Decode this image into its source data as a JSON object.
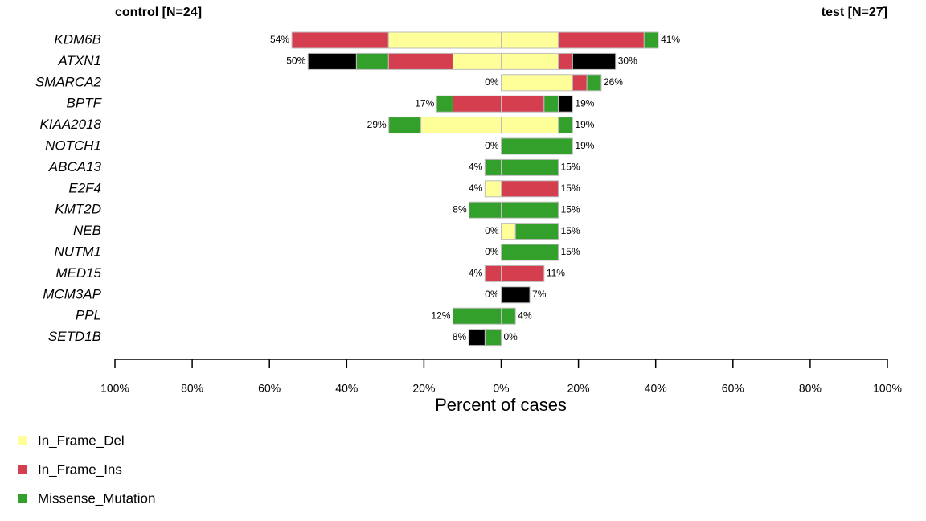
{
  "chart_data": {
    "type": "co-bar",
    "left_title": "control [N=24]",
    "right_title": "test [N=27]",
    "xlabel": "Percent of cases",
    "categories": [
      "KDM6B",
      "ATXN1",
      "SMARCA2",
      "BPTF",
      "KIAA2018",
      "NOTCH1",
      "ABCA13",
      "E2F4",
      "KMT2D",
      "NEB",
      "NUTM1",
      "MED15",
      "MCM3AP",
      "PPL",
      "SETD1B"
    ],
    "left_labels": [
      "54%",
      "50%",
      "0%",
      "17%",
      "29%",
      "0%",
      "4%",
      "4%",
      "8%",
      "0%",
      "0%",
      "4%",
      "0%",
      "12%",
      "8%"
    ],
    "right_labels": [
      "41%",
      "30%",
      "26%",
      "19%",
      "19%",
      "19%",
      "15%",
      "15%",
      "15%",
      "15%",
      "15%",
      "11%",
      "7%",
      "4%",
      "0%"
    ],
    "series": [
      {
        "name": "In_Frame_Del",
        "color": "#FFFF99",
        "left_values": [
          29.2,
          12.5,
          0,
          0,
          20.8,
          0,
          0,
          4.2,
          0,
          0,
          0,
          0,
          0,
          0,
          0
        ],
        "right_values": [
          14.8,
          14.8,
          18.5,
          0,
          14.8,
          0,
          0,
          0,
          0,
          3.7,
          0,
          0,
          0,
          0,
          0
        ]
      },
      {
        "name": "In_Frame_Ins",
        "color": "#D53E4F",
        "left_values": [
          25,
          16.7,
          0,
          12.5,
          0,
          0,
          0,
          0,
          0,
          0,
          0,
          4.2,
          0,
          0,
          0
        ],
        "right_values": [
          22.2,
          3.7,
          3.7,
          11.1,
          0,
          0,
          0,
          14.8,
          0,
          0,
          0,
          11.1,
          0,
          0,
          0
        ]
      },
      {
        "name": "Missense_Mutation",
        "color": "#33A02C",
        "left_values": [
          0,
          8.3,
          0,
          4.2,
          8.3,
          0,
          4.2,
          0,
          8.3,
          0,
          0,
          0,
          0,
          12.5,
          4.2
        ],
        "right_values": [
          3.7,
          0,
          3.7,
          3.7,
          3.7,
          18.5,
          14.8,
          0,
          14.8,
          11.1,
          14.8,
          0,
          0,
          3.7,
          0
        ]
      },
      {
        "color": "#000000",
        "left_values": [
          0,
          12.5,
          0,
          0,
          0,
          0,
          0,
          0,
          0,
          0,
          0,
          0,
          0,
          0,
          4.2
        ],
        "right_values": [
          0,
          11.1,
          0,
          3.7,
          0,
          0,
          0,
          0,
          0,
          0,
          0,
          0,
          7.4,
          0,
          0
        ]
      }
    ],
    "xlim": [
      -100,
      100
    ],
    "xticks": [
      {
        "value": -100,
        "label": "100%"
      },
      {
        "value": -80,
        "label": "80%"
      },
      {
        "value": -60,
        "label": "60%"
      },
      {
        "value": -40,
        "label": "40%"
      },
      {
        "value": -20,
        "label": "20%"
      },
      {
        "value": 0,
        "label": "0%"
      },
      {
        "value": 20,
        "label": "20%"
      },
      {
        "value": 40,
        "label": "40%"
      },
      {
        "value": 60,
        "label": "60%"
      },
      {
        "value": 80,
        "label": "80%"
      },
      {
        "value": 100,
        "label": "100%"
      }
    ]
  }
}
